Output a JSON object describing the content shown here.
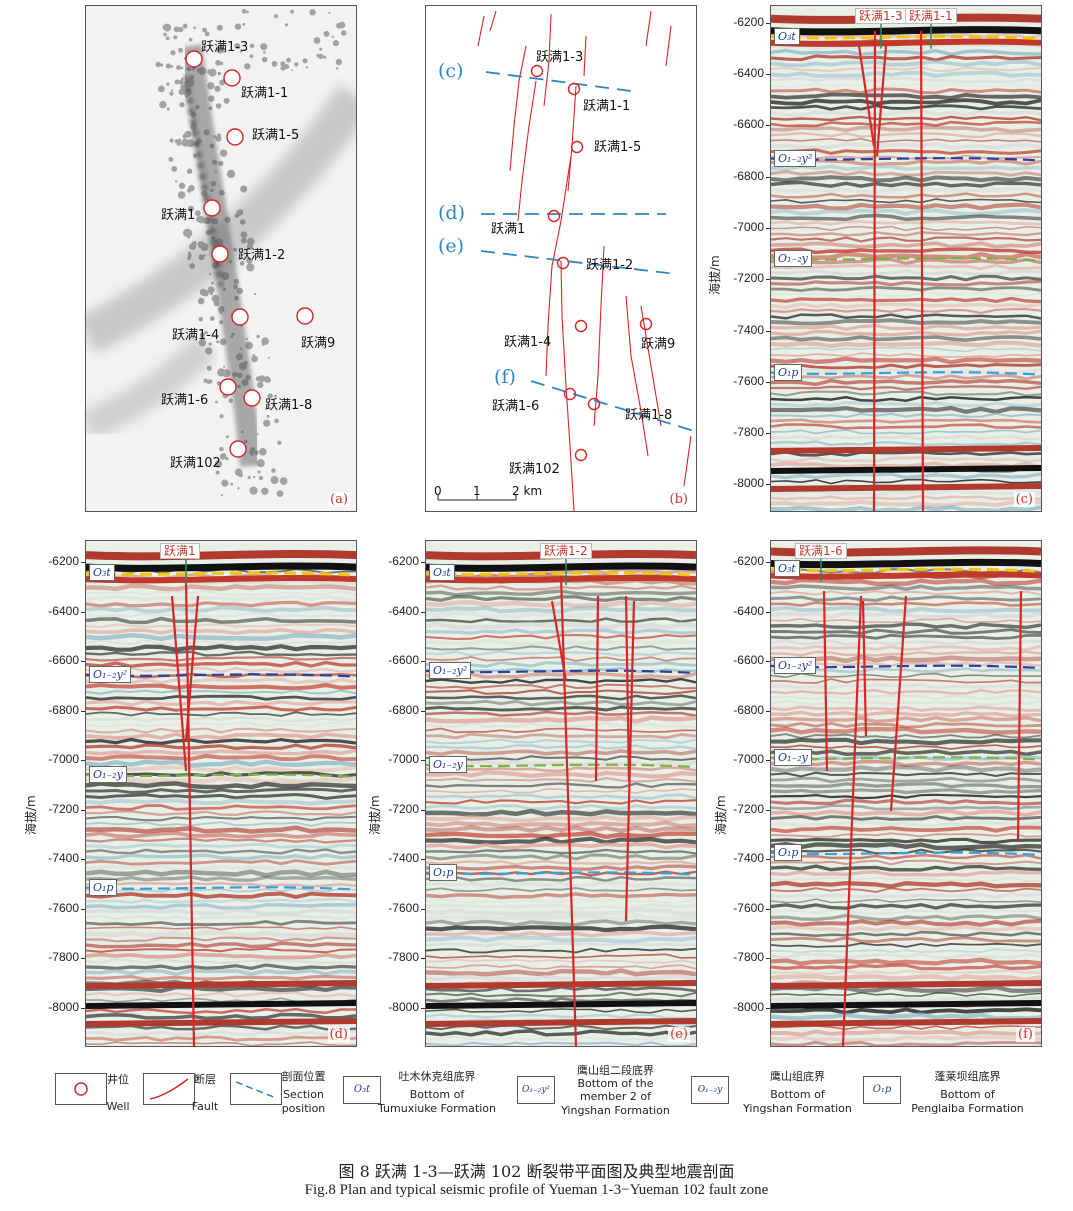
{
  "panels": {
    "a": {
      "label": "(a)",
      "wells": [
        "跃满1-3",
        "跃满1-1",
        "跃满1-5",
        "跃满1",
        "跃满1-2",
        "跃满1-4",
        "跃满9",
        "跃满1-6",
        "跃满1-8",
        "跃满102"
      ]
    },
    "b": {
      "label": "(b)",
      "wells": [
        "跃满1-3",
        "跃满1-1",
        "跃满1-5",
        "跃满1",
        "跃满1-2",
        "跃满1-4",
        "跃满9",
        "跃满1-6",
        "跃满1-8",
        "跃满102"
      ],
      "sections": [
        "(c)",
        "(d)",
        "(e)",
        "(f)"
      ],
      "scale": {
        "t0": "0",
        "t1": "1",
        "t2": "2 km"
      }
    },
    "c": {
      "label": "(c)",
      "wells": [
        "跃满1-3",
        "跃满1-1"
      ]
    },
    "d": {
      "label": "(d)",
      "wells": [
        "跃满1"
      ]
    },
    "e": {
      "label": "(e)",
      "wells": [
        "跃满1-2"
      ]
    },
    "f": {
      "label": "(f)",
      "wells": [
        "跃满1-6"
      ]
    }
  },
  "axis": {
    "ytitle": "海拔/m",
    "top_ticks": [
      "-6200",
      "-6400",
      "-6600",
      "-6800",
      "-7000",
      "-7200",
      "-7400",
      "-7600",
      "-7800",
      "-8000"
    ],
    "bottom_ticks": [
      "-6200",
      "-6400",
      "-6600",
      "-6800",
      "-7000",
      "-7200",
      "-7400",
      "-7600",
      "-7800",
      "-8000"
    ]
  },
  "horizons": {
    "o3t": "O₃t",
    "o12y2": "O₁₋₂y²",
    "o12y": "O₁₋₂y",
    "o1p": "O₁p"
  },
  "legend": {
    "well_cn": "井位",
    "well_en": "Well",
    "fault_cn": "断层",
    "fault_en": "Fault",
    "section_cn": "剖面位置",
    "section_en1": "Section",
    "section_en2": "position",
    "o3t_cn": "吐木休克组底界",
    "o3t_en1": "Bottom of",
    "o3t_en2": "Tumuxiuke Formation",
    "y2_cn": "鹰山组二段底界",
    "y2_en1": "Bottom of the",
    "y2_en2": "member 2 of",
    "y2_en3": "Yingshan Formation",
    "y_cn": "鹰山组底界",
    "y_en1": "Bottom of",
    "y_en2": "Yingshan Formation",
    "p_cn": "蓬莱坝组底界",
    "p_en1": "Bottom of",
    "p_en2": "Penglaiba Formation"
  },
  "caption": {
    "cn": "图 8  跃满 1-3—跃满 102 断裂带平面图及典型地震剖面",
    "en": "Fig.8  Plan and typical seismic profile of Yueman 1-3−Yueman 102 fault zone"
  },
  "colors": {
    "fault": "#d62728",
    "section": "#2e86c1",
    "o3t": "#f1c40f",
    "o12y2": "#2c3e9e",
    "o12y": "#7cb342",
    "o1p": "#3aa0d8"
  }
}
